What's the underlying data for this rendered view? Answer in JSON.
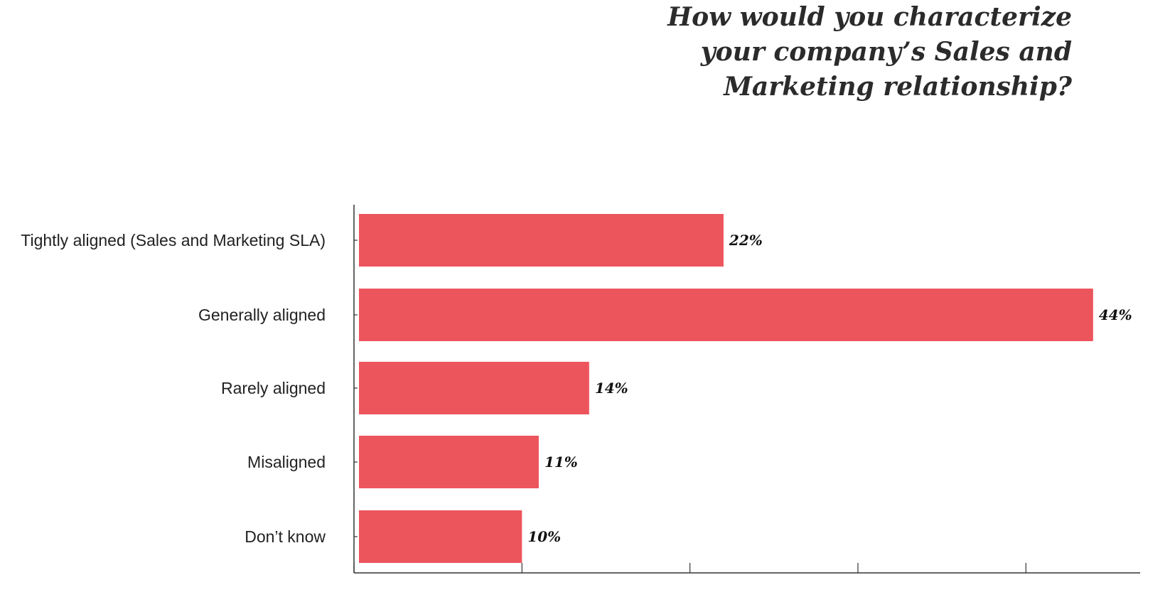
{
  "title_lines": [
    "How would you characterize",
    "your company’s Sales and",
    "Marketing relationship?"
  ],
  "colors": {
    "bar": "#ED555D",
    "axis": "#333333",
    "title": "#2b2b2b"
  },
  "chart_data": {
    "type": "bar",
    "orientation": "horizontal",
    "title": "How would you characterize your company’s Sales and Marketing relationship?",
    "categories": [
      "Tightly aligned (Sales and Marketing SLA)",
      "Generally aligned",
      "Rarely aligned",
      "Misaligned",
      "Don’t know"
    ],
    "values": [
      22,
      44,
      14,
      11,
      10
    ],
    "value_labels": [
      "22%",
      "44%",
      "14%",
      "11%",
      "10%"
    ],
    "unit": "%",
    "xlim": [
      0,
      46.8
    ],
    "xticks": [
      0,
      10,
      20,
      30,
      40
    ],
    "grid": false,
    "legend": "none"
  }
}
